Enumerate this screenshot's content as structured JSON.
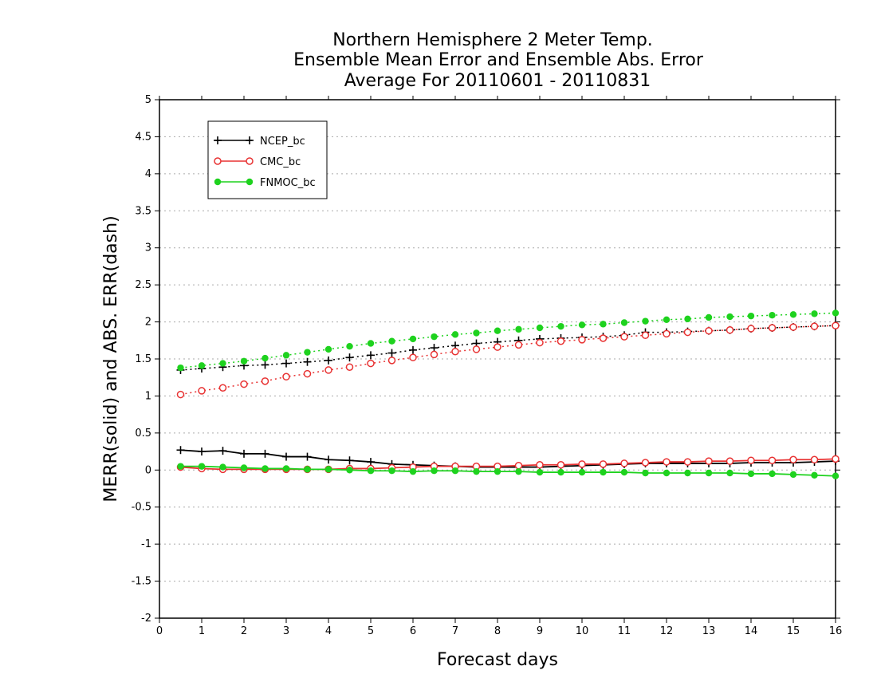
{
  "chart_data": {
    "type": "line",
    "title": [
      "Northern Hemisphere 2 Meter Temp.",
      "Ensemble Mean Error and Ensemble Abs. Error",
      "Average For 20110601 - 20110831"
    ],
    "xlabel": "Forecast days",
    "ylabel": "MERR(solid) and ABS. ERR(dash)",
    "xlim": [
      0,
      16
    ],
    "ylim": [
      -2,
      5
    ],
    "xticks": [
      "0",
      "1",
      "2",
      "3",
      "4",
      "5",
      "6",
      "7",
      "8",
      "9",
      "10",
      "11",
      "12",
      "13",
      "14",
      "15",
      "16"
    ],
    "yticks": [
      "5",
      "4.5",
      "4",
      "3.5",
      "3",
      "2.5",
      "2",
      "1.5",
      "1",
      "0.5",
      "0",
      "-0.5",
      "-1",
      "-1.5",
      "-2"
    ],
    "grid": true,
    "legend_position": "top-left",
    "x": [
      0.5,
      1,
      1.5,
      2,
      2.5,
      3,
      3.5,
      4,
      4.5,
      5,
      5.5,
      6,
      6.5,
      7,
      7.5,
      8,
      8.5,
      9,
      9.5,
      10,
      10.5,
      11,
      11.5,
      12,
      12.5,
      13,
      13.5,
      14,
      14.5,
      15,
      15.5,
      16
    ],
    "series": [
      {
        "name": "NCEP_bc",
        "color": "#000000",
        "marker": "plus",
        "merr": [
          0.27,
          0.25,
          0.26,
          0.22,
          0.22,
          0.18,
          0.18,
          0.14,
          0.13,
          0.11,
          0.08,
          0.07,
          0.06,
          0.05,
          0.04,
          0.04,
          0.04,
          0.04,
          0.05,
          0.06,
          0.07,
          0.08,
          0.09,
          0.09,
          0.09,
          0.09,
          0.09,
          0.1,
          0.1,
          0.1,
          0.11,
          0.12
        ],
        "abs_err": [
          1.35,
          1.37,
          1.39,
          1.41,
          1.42,
          1.44,
          1.46,
          1.48,
          1.52,
          1.55,
          1.58,
          1.62,
          1.65,
          1.68,
          1.71,
          1.73,
          1.75,
          1.77,
          1.78,
          1.79,
          1.8,
          1.82,
          1.86,
          1.86,
          1.87,
          1.88,
          1.89,
          1.91,
          1.92,
          1.93,
          1.94,
          1.95
        ]
      },
      {
        "name": "CMC_bc",
        "color": "#e83232",
        "marker": "open-circle",
        "merr": [
          0.04,
          0.02,
          0.01,
          0.01,
          0.01,
          0.01,
          0.01,
          0.01,
          0.02,
          0.02,
          0.03,
          0.04,
          0.05,
          0.05,
          0.05,
          0.05,
          0.06,
          0.07,
          0.07,
          0.08,
          0.08,
          0.09,
          0.1,
          0.11,
          0.11,
          0.12,
          0.12,
          0.13,
          0.13,
          0.14,
          0.14,
          0.15
        ],
        "abs_err": [
          1.02,
          1.07,
          1.11,
          1.16,
          1.2,
          1.26,
          1.3,
          1.35,
          1.39,
          1.44,
          1.48,
          1.52,
          1.56,
          1.6,
          1.63,
          1.66,
          1.69,
          1.72,
          1.74,
          1.76,
          1.78,
          1.8,
          1.82,
          1.84,
          1.86,
          1.88,
          1.89,
          1.91,
          1.92,
          1.93,
          1.94,
          1.95
        ]
      },
      {
        "name": "FNMOC_bc",
        "color": "#1ed21e",
        "marker": "filled-circle",
        "merr": [
          0.05,
          0.05,
          0.04,
          0.03,
          0.02,
          0.02,
          0.01,
          0.01,
          0.0,
          -0.01,
          -0.01,
          -0.02,
          -0.01,
          -0.01,
          -0.02,
          -0.02,
          -0.02,
          -0.03,
          -0.03,
          -0.03,
          -0.03,
          -0.03,
          -0.04,
          -0.04,
          -0.04,
          -0.04,
          -0.04,
          -0.05,
          -0.05,
          -0.06,
          -0.07,
          -0.08
        ],
        "abs_err": [
          1.38,
          1.41,
          1.44,
          1.47,
          1.51,
          1.55,
          1.59,
          1.63,
          1.67,
          1.71,
          1.74,
          1.77,
          1.8,
          1.83,
          1.85,
          1.88,
          1.9,
          1.92,
          1.94,
          1.96,
          1.97,
          1.99,
          2.01,
          2.03,
          2.04,
          2.06,
          2.07,
          2.08,
          2.09,
          2.1,
          2.11,
          2.12
        ]
      }
    ]
  }
}
